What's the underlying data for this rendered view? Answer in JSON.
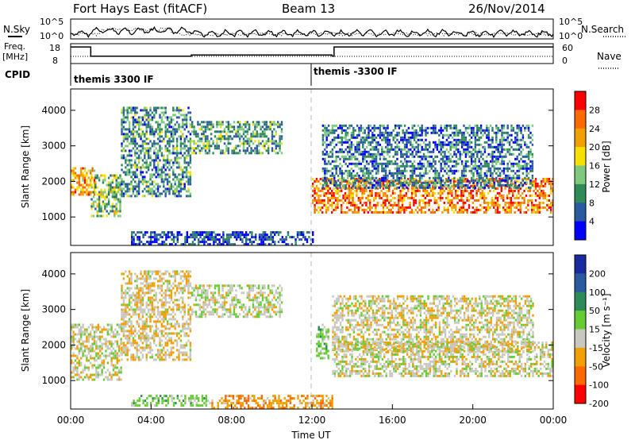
{
  "header": {
    "station": "Fort Hays East (fitACF)",
    "beam": "Beam 13",
    "date": "26/Nov/2014"
  },
  "top_panels": {
    "nsky_label": "N.Sky",
    "nsearch_label": "N.Search",
    "noise_ticks": [
      "10^5",
      "10^0"
    ],
    "freq_label": "Freq.",
    "freq_unit": "[MHz]",
    "freq_ticks": [
      "18",
      "8"
    ],
    "nave_label": "Nave",
    "nave_ticks": [
      "60",
      "0"
    ],
    "cpid_label": "CPID",
    "cpid_segments": [
      {
        "start_hour": 0,
        "end_hour": 12,
        "label": "themis 3300 IF"
      },
      {
        "start_hour": 12,
        "end_hour": 24,
        "label": "themis -3300 IF"
      }
    ],
    "freq_steps_mhz": [
      [
        0,
        16.8
      ],
      [
        1,
        11.5
      ],
      [
        6,
        12.2
      ],
      [
        13,
        11.5
      ],
      [
        13.1,
        16.8
      ],
      [
        24,
        16.8
      ]
    ]
  },
  "chart_data": [
    {
      "type": "heatmap",
      "name": "power",
      "ylabel": "Slant Range [km]",
      "xlabel": "",
      "yticks": [
        1000,
        2000,
        3000,
        4000
      ],
      "ylim": [
        200,
        4600
      ],
      "xlim": [
        0,
        24
      ],
      "colorbar_label": "Power [dB]",
      "colorbar_ticks": [
        "4",
        "8",
        "12",
        "16",
        "20",
        "24",
        "28"
      ],
      "colors": [
        "#0000ff",
        "#2a5aa0",
        "#2e8b57",
        "#7fc97f",
        "#f5e000",
        "#f0a000",
        "#ff6a00",
        "#ff0000"
      ],
      "regions": [
        {
          "hours": [
            0,
            1.2
          ],
          "range_km": [
            1600,
            2400
          ],
          "power": 22
        },
        {
          "hours": [
            1,
            2.5
          ],
          "range_km": [
            1000,
            2200
          ],
          "power": 14
        },
        {
          "hours": [
            2.5,
            6
          ],
          "range_km": [
            1600,
            4100
          ],
          "power": 10
        },
        {
          "hours": [
            6,
            10.5
          ],
          "range_km": [
            2800,
            3700
          ],
          "power": 11
        },
        {
          "hours": [
            12,
            24
          ],
          "range_km": [
            1100,
            2100
          ],
          "power": 25
        },
        {
          "hours": [
            12.5,
            23
          ],
          "range_km": [
            1800,
            3600
          ],
          "power": 8
        },
        {
          "hours": [
            3,
            12
          ],
          "range_km": [
            200,
            600
          ],
          "power": 5
        }
      ]
    },
    {
      "type": "heatmap",
      "name": "velocity",
      "ylabel": "Slant Range [km]",
      "xlabel": "Time UT",
      "yticks": [
        1000,
        2000,
        3000,
        4000
      ],
      "ylim": [
        200,
        4600
      ],
      "xlim": [
        0,
        24
      ],
      "xtick_labels": [
        "00:00",
        "04:00",
        "08:00",
        "12:00",
        "16:00",
        "20:00",
        "00:00"
      ],
      "colorbar_label": "Velocity [m s⁻¹]",
      "colorbar_ticks": [
        "200",
        "100",
        "50",
        "15",
        "-15",
        "-50",
        "-100",
        "-200"
      ],
      "colors": [
        "#1a2aa0",
        "#2a5aa0",
        "#2e8b57",
        "#66cc33",
        "#c8c8c0",
        "#f0a000",
        "#ff6a00",
        "#ff0000"
      ],
      "regions": [
        {
          "hours": [
            0,
            2.5
          ],
          "range_km": [
            1000,
            2600
          ],
          "velocity": 0
        },
        {
          "hours": [
            2.5,
            6
          ],
          "range_km": [
            1600,
            4100
          ],
          "velocity": -10
        },
        {
          "hours": [
            6,
            10.5
          ],
          "range_km": [
            2800,
            3700
          ],
          "velocity": 5
        },
        {
          "hours": [
            12.2,
            12.8
          ],
          "range_km": [
            1600,
            2600
          ],
          "velocity": 30
        },
        {
          "hours": [
            13,
            24
          ],
          "range_km": [
            1100,
            2100
          ],
          "velocity": 0
        },
        {
          "hours": [
            13,
            23
          ],
          "range_km": [
            1800,
            3400
          ],
          "velocity": -5
        },
        {
          "hours": [
            3,
            7
          ],
          "range_km": [
            300,
            600
          ],
          "velocity": 30
        },
        {
          "hours": [
            7,
            13
          ],
          "range_km": [
            200,
            600
          ],
          "velocity": -40
        }
      ]
    }
  ]
}
